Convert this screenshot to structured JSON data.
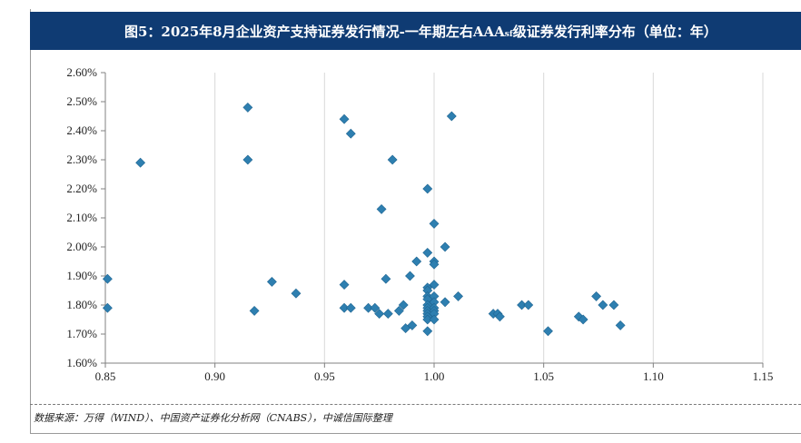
{
  "title": {
    "main": "图5：2025年8月企业资产支持证券发行情况-一年期左右AAA",
    "sub": "sf",
    "rest": "级证券发行利率分布（单位：年）"
  },
  "source": "数据来源：万得（WIND）、中国资产证券化分析网（CNABS），中诚信国际整理",
  "colors": {
    "title_bg": "#0f3b73",
    "marker": "#2e7fb0",
    "grid": "#d9d9d9",
    "axis": "#808080"
  },
  "chart_data": {
    "type": "scatter",
    "xlim": [
      0.85,
      1.15
    ],
    "ylim": [
      1.6,
      2.6
    ],
    "x_ticks": [
      0.85,
      0.9,
      0.95,
      1.0,
      1.05,
      1.1,
      1.15
    ],
    "x_tick_labels": [
      "0.85",
      "0.90",
      "0.95",
      "1.00",
      "1.05",
      "1.10",
      "1.15"
    ],
    "y_ticks": [
      1.6,
      1.7,
      1.8,
      1.9,
      2.0,
      2.1,
      2.2,
      2.3,
      2.4,
      2.5,
      2.6
    ],
    "y_tick_labels": [
      "1.60%",
      "1.70%",
      "1.80%",
      "1.90%",
      "2.00%",
      "2.10%",
      "2.20%",
      "2.30%",
      "2.40%",
      "2.50%",
      "2.60%"
    ],
    "grid": "vertical",
    "points": [
      [
        0.851,
        1.89
      ],
      [
        0.851,
        1.79
      ],
      [
        0.866,
        2.29
      ],
      [
        0.915,
        2.48
      ],
      [
        0.915,
        2.3
      ],
      [
        0.918,
        1.78
      ],
      [
        0.926,
        1.88
      ],
      [
        0.937,
        1.84
      ],
      [
        0.959,
        2.44
      ],
      [
        0.962,
        2.39
      ],
      [
        0.959,
        1.87
      ],
      [
        0.959,
        1.79
      ],
      [
        0.962,
        1.79
      ],
      [
        0.97,
        1.79
      ],
      [
        0.973,
        1.79
      ],
      [
        0.975,
        1.77
      ],
      [
        0.976,
        2.13
      ],
      [
        0.978,
        1.89
      ],
      [
        0.979,
        1.77
      ],
      [
        0.981,
        2.3
      ],
      [
        0.984,
        1.78
      ],
      [
        0.986,
        1.8
      ],
      [
        0.987,
        1.72
      ],
      [
        0.989,
        1.9
      ],
      [
        0.99,
        1.73
      ],
      [
        0.992,
        1.95
      ],
      [
        0.997,
        2.2
      ],
      [
        0.997,
        1.98
      ],
      [
        0.997,
        1.86
      ],
      [
        0.997,
        1.85
      ],
      [
        0.997,
        1.83
      ],
      [
        0.997,
        1.82
      ],
      [
        0.997,
        1.8
      ],
      [
        0.997,
        1.79
      ],
      [
        0.997,
        1.78
      ],
      [
        0.997,
        1.77
      ],
      [
        0.997,
        1.76
      ],
      [
        0.997,
        1.75
      ],
      [
        0.997,
        1.71
      ],
      [
        1.0,
        2.08
      ],
      [
        1.0,
        1.95
      ],
      [
        1.0,
        1.94
      ],
      [
        1.0,
        1.87
      ],
      [
        1.0,
        1.83
      ],
      [
        1.0,
        1.81
      ],
      [
        1.0,
        1.79
      ],
      [
        1.0,
        1.78
      ],
      [
        1.0,
        1.77
      ],
      [
        1.0,
        1.75
      ],
      [
        1.005,
        2.0
      ],
      [
        1.005,
        1.81
      ],
      [
        1.008,
        2.45
      ],
      [
        1.011,
        1.83
      ],
      [
        1.027,
        1.77
      ],
      [
        1.029,
        1.77
      ],
      [
        1.03,
        1.76
      ],
      [
        1.04,
        1.8
      ],
      [
        1.043,
        1.8
      ],
      [
        1.052,
        1.71
      ],
      [
        1.066,
        1.76
      ],
      [
        1.068,
        1.75
      ],
      [
        1.074,
        1.83
      ],
      [
        1.077,
        1.8
      ],
      [
        1.082,
        1.8
      ],
      [
        1.085,
        1.73
      ]
    ]
  }
}
